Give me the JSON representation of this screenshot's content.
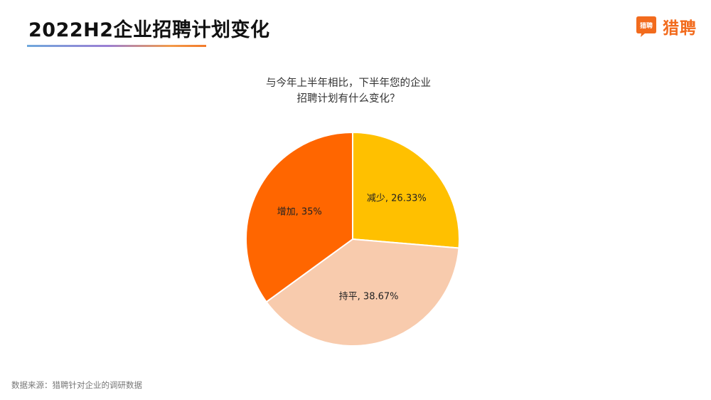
{
  "header": {
    "title": "2022H2企业招聘计划变化",
    "logo_icon_text": "猎聘",
    "logo_text": "猎聘"
  },
  "footer": {
    "source": "数据来源：猎聘针对企业的调研数据"
  },
  "colors": {
    "accent": "#f26b1d",
    "decrease": "#ffc000",
    "flat": "#f8cbad",
    "increase": "#ff6600"
  },
  "chart_data": {
    "type": "pie",
    "title_lines": [
      "与今年上半年相比，下半年您的企业",
      "招聘计划有什么变化？"
    ],
    "slices": [
      {
        "label": "减少",
        "value": 26.33,
        "display": "减少, 26.33%",
        "color": "#ffc000"
      },
      {
        "label": "持平",
        "value": 38.67,
        "display": "持平, 38.67%",
        "color": "#f8cbad"
      },
      {
        "label": "增加",
        "value": 35,
        "display": "增加, 35%",
        "color": "#ff6600"
      }
    ],
    "start_angle_deg": 0,
    "direction": "clockwise",
    "legend": "none"
  }
}
